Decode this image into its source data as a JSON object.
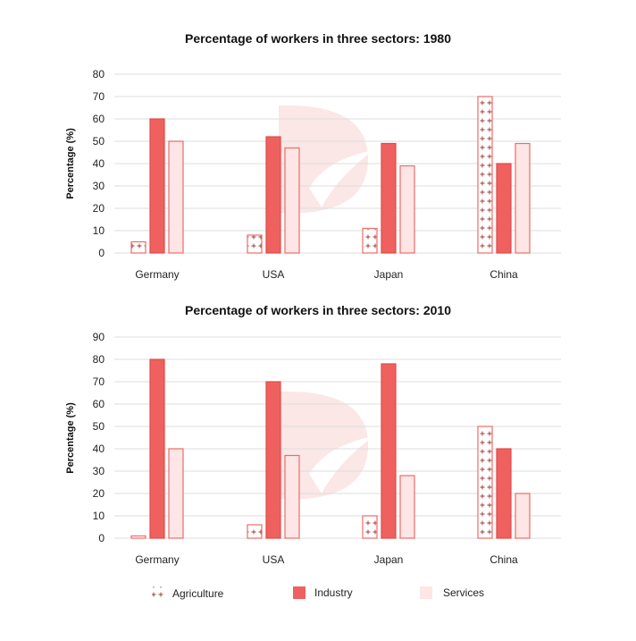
{
  "legend": {
    "agriculture": "Agriculture",
    "industry": "Industry",
    "services": "Services"
  },
  "colors": {
    "industry_fill": "#ee615f",
    "industry_stroke": "#e04a48",
    "services_fill": "#fde6e5",
    "agri_fill": "#ffffff",
    "bar_stroke": "#ee6b68",
    "grid": "#dddddd",
    "watermark": "#f6d4d2"
  },
  "chart_data": [
    {
      "type": "bar",
      "title": "Percentage of workers in three sectors: 1980",
      "ylabel": "Percentage  (%)",
      "xlabel": "",
      "categories": [
        "Germany",
        "USA",
        "Japan",
        "China"
      ],
      "ylim": [
        0,
        80
      ],
      "yticks": [
        0,
        10,
        20,
        30,
        40,
        50,
        60,
        70,
        80
      ],
      "series": [
        {
          "name": "Agriculture",
          "values": [
            5,
            8,
            11,
            70
          ]
        },
        {
          "name": "Industry",
          "values": [
            60,
            52,
            49,
            40
          ]
        },
        {
          "name": "Services",
          "values": [
            50,
            47,
            39,
            49
          ]
        }
      ]
    },
    {
      "type": "bar",
      "title": "Percentage of workers in three sectors: 2010",
      "ylabel": "Percentage  (%)",
      "xlabel": "",
      "categories": [
        "Germany",
        "USA",
        "Japan",
        "China"
      ],
      "ylim": [
        0,
        90
      ],
      "yticks": [
        0,
        10,
        20,
        30,
        40,
        50,
        60,
        70,
        80,
        90
      ],
      "series": [
        {
          "name": "Agriculture",
          "values": [
            1,
            6,
            10,
            50
          ]
        },
        {
          "name": "Industry",
          "values": [
            80,
            70,
            78,
            40
          ]
        },
        {
          "name": "Services",
          "values": [
            40,
            37,
            28,
            20
          ]
        }
      ]
    }
  ]
}
